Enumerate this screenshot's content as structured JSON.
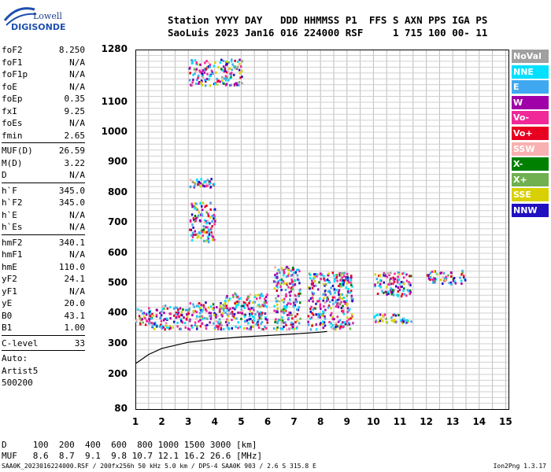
{
  "logo": {
    "line1": "Lowell",
    "line2": "DIGISONDE"
  },
  "header": {
    "line1": "Station YYYY DAY   DDD HHMMSS P1  FFS S AXN PPS IGA PS",
    "line2": "SaoLuis 2023 Jan16 016 224000 RSF     1 715 100 00- 11"
  },
  "params_group1": [
    {
      "label": "foF2",
      "value": "8.250"
    },
    {
      "label": "foF1",
      "value": "N/A"
    },
    {
      "label": "foF1p",
      "value": "N/A"
    },
    {
      "label": "foE",
      "value": "N/A"
    },
    {
      "label": "foEp",
      "value": "0.35"
    },
    {
      "label": "fxI",
      "value": "9.25"
    },
    {
      "label": "foEs",
      "value": "N/A"
    },
    {
      "label": "fmin",
      "value": "2.65"
    }
  ],
  "params_group2": [
    {
      "label": "MUF(D)",
      "value": "26.59"
    },
    {
      "label": "M(D)",
      "value": "3.22"
    },
    {
      "label": "D",
      "value": "N/A"
    }
  ],
  "params_group3": [
    {
      "label": "h`F",
      "value": "345.0"
    },
    {
      "label": "h`F2",
      "value": "345.0"
    },
    {
      "label": "h`E",
      "value": "N/A"
    },
    {
      "label": "h`Es",
      "value": "N/A"
    }
  ],
  "params_group4": [
    {
      "label": "hmF2",
      "value": "340.1"
    },
    {
      "label": "hmF1",
      "value": "N/A"
    },
    {
      "label": "hmE",
      "value": "110.0"
    },
    {
      "label": "yF2",
      "value": "24.1"
    },
    {
      "label": "yF1",
      "value": "N/A"
    },
    {
      "label": "yE",
      "value": "20.0"
    },
    {
      "label": "B0",
      "value": "43.1"
    },
    {
      "label": "B1",
      "value": "1.00"
    }
  ],
  "clevel": {
    "label": "C-level",
    "value": "33"
  },
  "auto": {
    "line1": "Auto:",
    "line2": "Artist5",
    "line3": "500200"
  },
  "legend": [
    {
      "label": "NoVal",
      "color": "#a0a0a0"
    },
    {
      "label": "NNE",
      "color": "#00e0ff"
    },
    {
      "label": "E",
      "color": "#40a8f0"
    },
    {
      "label": "W",
      "color": "#a000a8"
    },
    {
      "label": "Vo-",
      "color": "#f02898"
    },
    {
      "label": "Vo+",
      "color": "#e80020"
    },
    {
      "label": "SSW",
      "color": "#f8b0b0"
    },
    {
      "label": "X-",
      "color": "#008000"
    },
    {
      "label": "X+",
      "color": "#70b050"
    },
    {
      "label": "SSE",
      "color": "#d8d000"
    },
    {
      "label": "NNW",
      "color": "#2010c0"
    }
  ],
  "dmuf": {
    "d_line": "D     100  200  400  600  800 1000 1500 3000 [km]",
    "muf_line": "MUF   8.6  8.7  9.1  9.8 10.7 12.1 16.2 26.6 [MHz]"
  },
  "footer": {
    "left": "SAA0K_2023016224000.RSF / 200fx256h 50 kHz 5.0 km / DPS-4 SAA0K 903 / 2.6 S 315.8 E",
    "right": "Ion2Png 1.3.17"
  },
  "chart_data": {
    "type": "scatter",
    "title": "",
    "xlabel": "",
    "ylabel": "",
    "x_ticks": [
      "1",
      "2",
      "3",
      "4",
      "5",
      "6",
      "7",
      "8",
      "9",
      "10",
      "11",
      "12",
      "13",
      "14",
      "15"
    ],
    "y_ticks": [
      "80",
      "200",
      "300",
      "400",
      "500",
      "600",
      "700",
      "800",
      "900",
      "1000",
      "1100",
      "1280"
    ],
    "xlim": [
      1,
      15
    ],
    "ylim_km": [
      80,
      1280
    ],
    "y_scale": "virtual-height (nonlinear lower section)",
    "grid": true,
    "legend_position": "right",
    "echo_regions": [
      {
        "f_start": 1.0,
        "f_end": 1.6,
        "h_lo": 360,
        "h_hi": 420
      },
      {
        "f_start": 1.6,
        "f_end": 3.0,
        "h_lo": 350,
        "h_hi": 430
      },
      {
        "f_start": 3.0,
        "f_end": 4.3,
        "h_lo": 350,
        "h_hi": 440
      },
      {
        "f_start": 4.3,
        "f_end": 6.0,
        "h_lo": 350,
        "h_hi": 470
      },
      {
        "f_start": 6.2,
        "f_end": 7.2,
        "h_lo": 350,
        "h_hi": 560
      },
      {
        "f_start": 7.5,
        "f_end": 9.2,
        "h_lo": 350,
        "h_hi": 540
      },
      {
        "f_start": 10.0,
        "f_end": 11.4,
        "h_lo": 460,
        "h_hi": 540
      },
      {
        "f_start": 10.0,
        "f_end": 11.4,
        "h_lo": 370,
        "h_hi": 400
      },
      {
        "f_start": 12.0,
        "f_end": 13.5,
        "h_lo": 500,
        "h_hi": 545
      },
      {
        "f_start": 3.0,
        "f_end": 4.0,
        "h_lo": 640,
        "h_hi": 770
      },
      {
        "f_start": 3.0,
        "f_end": 4.0,
        "h_lo": 820,
        "h_hi": 850
      },
      {
        "f_start": 3.0,
        "f_end": 5.0,
        "h_lo": 1160,
        "h_hi": 1250
      }
    ],
    "profile_curve": {
      "x": [
        1.0,
        1.5,
        2.0,
        3.0,
        4.0,
        5.0,
        6.0,
        7.0,
        8.0,
        8.25
      ],
      "y": [
        235,
        265,
        285,
        305,
        315,
        322,
        327,
        332,
        338,
        340
      ]
    }
  }
}
